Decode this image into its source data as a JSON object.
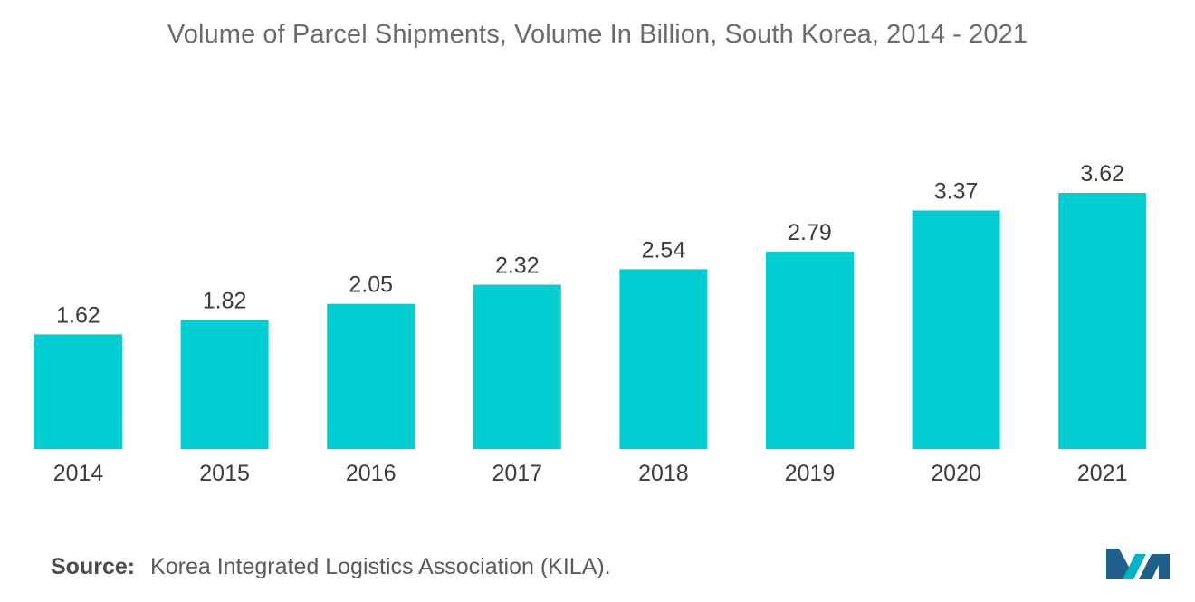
{
  "chart_data": {
    "type": "bar",
    "title": "Volume of Parcel Shipments, Volume In Billion, South Korea, 2014 - 2021",
    "categories": [
      "2014",
      "2015",
      "2016",
      "2017",
      "2018",
      "2019",
      "2020",
      "2021"
    ],
    "values": [
      1.62,
      1.82,
      2.05,
      2.32,
      2.54,
      2.79,
      3.37,
      3.62
    ],
    "value_labels": [
      "1.62",
      "1.82",
      "2.05",
      "2.32",
      "2.54",
      "2.79",
      "3.37",
      "3.62"
    ],
    "xlabel": "",
    "ylabel": "",
    "ylim": [
      0,
      3.62
    ],
    "grid": false,
    "legend": "none",
    "bar_color": "#00CED1"
  },
  "source": {
    "label": "Source:",
    "text": "Korea Integrated Logistics Association (KILA)."
  },
  "logo": {
    "icon": "mordor-logo-icon",
    "colors": [
      "#1f5f8b",
      "#00b4c5"
    ]
  }
}
